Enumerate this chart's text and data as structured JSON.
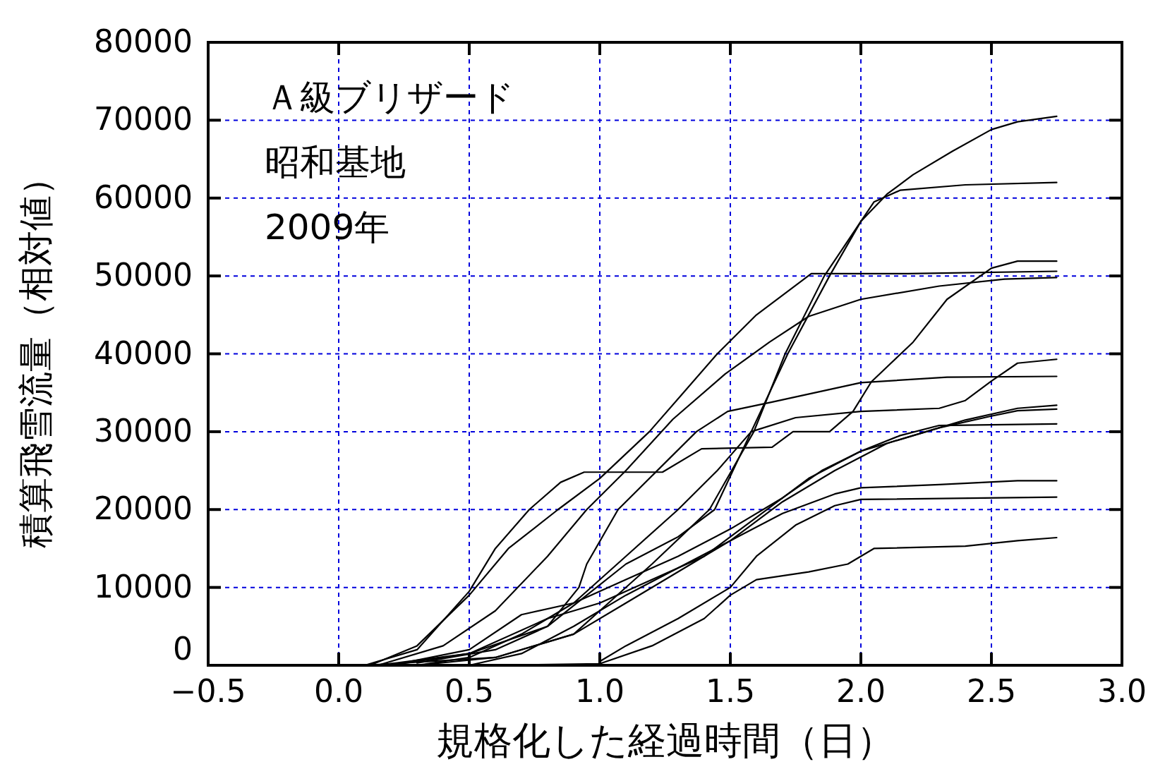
{
  "chart_data": {
    "type": "line",
    "xlabel": "規格化した経過時間（日）",
    "ylabel": "積算飛雪流量（相対値）",
    "annotations": [
      "Ａ級ブリザード",
      "昭和基地",
      "2009年"
    ],
    "xlim": [
      -0.5,
      3.0
    ],
    "xticks": [
      {
        "value": -0.5,
        "label": "−0.5"
      },
      {
        "value": 0,
        "label": "0.0"
      },
      {
        "value": 0.5,
        "label": "0.5"
      },
      {
        "value": 1,
        "label": "1.0"
      },
      {
        "value": 1.5,
        "label": "1.5"
      },
      {
        "value": 2,
        "label": "2.0"
      },
      {
        "value": 2.5,
        "label": "2.5"
      },
      {
        "value": 3,
        "label": "3.0"
      }
    ],
    "ylim": [
      0,
      80000
    ],
    "yticks": [
      0,
      10000,
      20000,
      30000,
      40000,
      50000,
      60000,
      70000,
      80000
    ],
    "grid": true,
    "marker": "none",
    "line_style": "solid",
    "series": [
      {
        "color": "#000000",
        "x": [
          0.1,
          0.6,
          0.9,
          1.0,
          1.2,
          1.42,
          1.59,
          1.71,
          1.86,
          2.0,
          2.1,
          2.2,
          2.35,
          2.5,
          2.6,
          2.75
        ],
        "values": [
          0,
          1000,
          4000,
          7000,
          13000,
          20000,
          30000,
          40000,
          50000,
          57000,
          60500,
          63000,
          66000,
          68800,
          69800,
          70500
        ]
      },
      {
        "color": "#000000",
        "x": [
          0.15,
          0.5,
          0.8,
          0.95,
          1.1,
          1.3,
          1.44,
          1.58,
          1.72,
          1.88,
          2.0,
          2.05,
          2.15,
          2.4,
          2.75
        ],
        "values": [
          0,
          1500,
          5000,
          9000,
          13000,
          16500,
          20000,
          30000,
          40000,
          50000,
          57000,
          59500,
          61000,
          61700,
          62000
        ]
      },
      {
        "color": "#000000",
        "x": [
          0.12,
          0.3,
          0.5,
          0.65,
          0.84,
          1.0,
          1.19,
          1.32,
          1.45,
          1.6,
          1.81,
          2.18,
          2.75
        ],
        "values": [
          0,
          2500,
          9000,
          15000,
          20000,
          24000,
          30000,
          35000,
          40000,
          45000,
          50300,
          50300,
          50600
        ]
      },
      {
        "color": "#000000",
        "x": [
          0.1,
          0.3,
          0.5,
          0.6,
          0.73,
          0.85,
          0.94,
          1.24,
          1.39,
          1.66,
          1.74,
          1.88,
          1.97,
          2.04,
          2.2,
          2.33,
          2.5,
          2.6,
          2.75
        ],
        "values": [
          0,
          2000,
          9500,
          15000,
          20000,
          23500,
          24800,
          24800,
          27800,
          28000,
          30000,
          30000,
          32600,
          36400,
          41500,
          47000,
          51000,
          51900,
          51900
        ]
      },
      {
        "color": "#000000",
        "x": [
          0.15,
          0.4,
          0.6,
          0.8,
          0.95,
          1.1,
          1.28,
          1.48,
          1.65,
          1.8,
          2.0,
          2.3,
          2.55,
          2.75
        ],
        "values": [
          0,
          2500,
          7000,
          14000,
          20000,
          25000,
          31600,
          37400,
          41500,
          44800,
          47000,
          48700,
          49600,
          49800
        ]
      },
      {
        "color": "#000000",
        "x": [
          0.3,
          0.6,
          0.8,
          0.92,
          0.95,
          1.07,
          1.37,
          1.49,
          1.66,
          2.0,
          2.33,
          2.75
        ],
        "values": [
          300,
          2000,
          5000,
          10000,
          13000,
          20000,
          30000,
          32600,
          33800,
          36300,
          37000,
          37100
        ]
      },
      {
        "color": "#000000",
        "x": [
          0.3,
          0.5,
          0.7,
          0.9,
          1.1,
          1.3,
          1.45,
          1.58,
          1.75,
          2.0,
          2.3,
          2.4,
          2.5,
          2.6,
          2.75
        ],
        "values": [
          0,
          1000,
          4000,
          8000,
          14000,
          20000,
          25000,
          30000,
          31800,
          32600,
          33000,
          34000,
          36500,
          38800,
          39300
        ]
      },
      {
        "color": "#000000",
        "x": [
          0.2,
          0.5,
          0.8,
          1.0,
          1.2,
          1.4,
          1.6,
          1.8,
          2.0,
          2.2,
          2.4,
          2.6,
          2.75
        ],
        "values": [
          0,
          1500,
          6000,
          8000,
          11000,
          14000,
          19000,
          24000,
          27500,
          29500,
          31500,
          33000,
          33400
        ]
      },
      {
        "color": "#000000",
        "x": [
          0.3,
          0.6,
          0.9,
          1.1,
          1.3,
          1.5,
          1.7,
          1.9,
          2.1,
          2.3,
          2.5,
          2.6,
          2.75
        ],
        "values": [
          0,
          1000,
          4000,
          8000,
          12000,
          16000,
          21000,
          25000,
          28500,
          30500,
          32000,
          32700,
          32900
        ]
      },
      {
        "color": "#000000",
        "x": [
          0.2,
          0.5,
          0.7,
          0.9,
          1.1,
          1.3,
          1.5,
          1.7,
          1.85,
          2.0,
          2.15,
          2.3,
          2.75
        ],
        "values": [
          0,
          2000,
          6500,
          8000,
          11000,
          14000,
          17500,
          21500,
          25000,
          27500,
          29500,
          30800,
          31000
        ]
      },
      {
        "color": "#000000",
        "x": [
          0.5,
          0.7,
          0.9,
          1.1,
          1.3,
          1.5,
          1.7,
          1.9,
          2.0,
          2.3,
          2.6,
          2.75
        ],
        "values": [
          0,
          1500,
          5000,
          9000,
          12500,
          16000,
          19500,
          22000,
          22800,
          23200,
          23700,
          23700
        ]
      },
      {
        "color": "#000000",
        "x": [
          1.0,
          1.1,
          1.3,
          1.5,
          1.6,
          1.75,
          1.9,
          2.0,
          2.75
        ],
        "values": [
          500,
          2500,
          6000,
          10000,
          14000,
          18000,
          20500,
          21300,
          21600
        ]
      },
      {
        "color": "#000000",
        "x": [
          0.6,
          1.0,
          1.2,
          1.4,
          1.5,
          1.6,
          1.8,
          1.95,
          2.05,
          2.4,
          2.6,
          2.75
        ],
        "values": [
          0,
          200,
          2500,
          6000,
          9000,
          11000,
          12000,
          13000,
          15000,
          15300,
          16000,
          16400
        ]
      }
    ]
  }
}
